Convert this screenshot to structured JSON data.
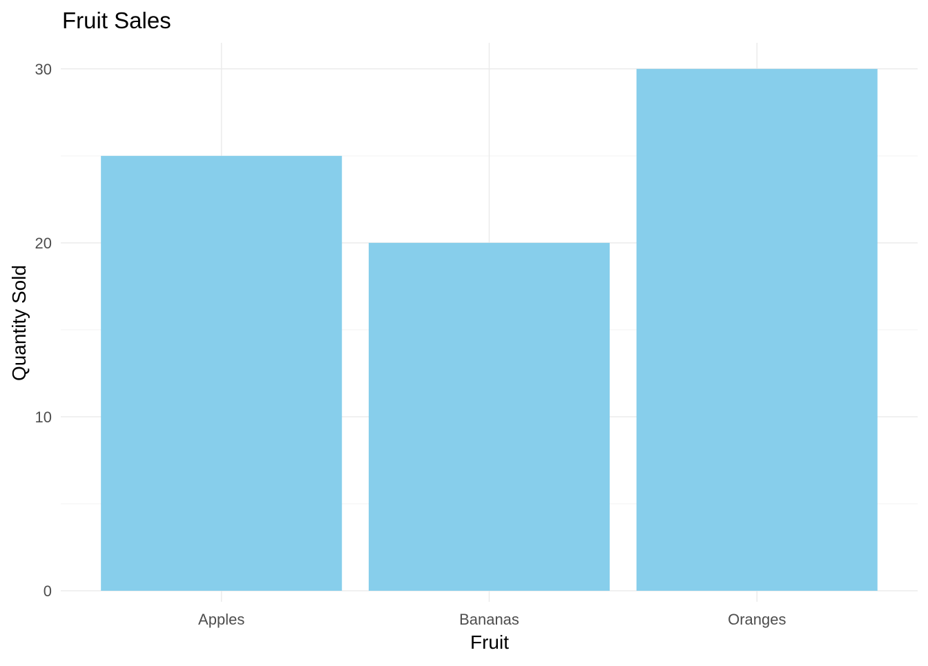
{
  "chart_data": {
    "type": "bar",
    "title": "Fruit Sales",
    "xlabel": "Fruit",
    "ylabel": "Quantity Sold",
    "categories": [
      "Apples",
      "Bananas",
      "Oranges"
    ],
    "values": [
      25,
      20,
      30
    ],
    "ylim": [
      0,
      31.5
    ],
    "y_ticks": [
      "0",
      "10",
      "20",
      "30"
    ],
    "grid": true,
    "legend": "none",
    "colors": {
      "bar": "#87CEEB",
      "grid_major": "#ebebeb",
      "grid_minor": "#f3f3f3",
      "tick_text": "#4d4d4d",
      "text": "#000000"
    }
  }
}
